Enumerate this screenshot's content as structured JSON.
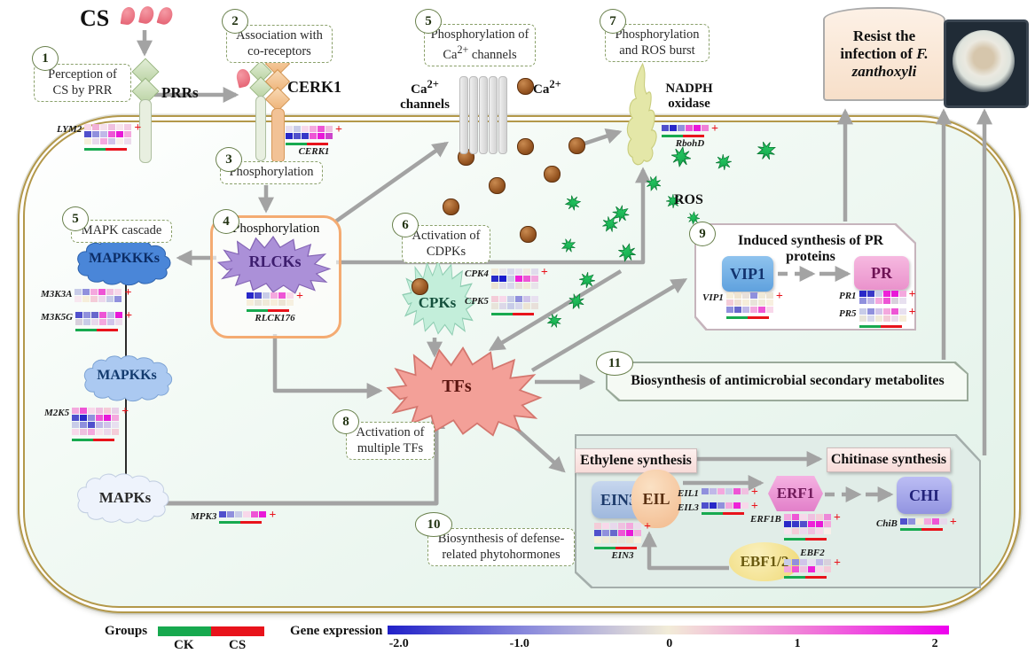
{
  "colors": {
    "arrow": "#a3a3a3",
    "membrane": "#b3984a",
    "ck": "#17a94f",
    "cs": "#e8131b",
    "plus": "#e8131b",
    "gradient": [
      "#2020c8",
      "#8a8adc",
      "#f2ecd8",
      "#f07ad8",
      "#ee00ee"
    ]
  },
  "banner": {
    "pre": "Resist the infection of ",
    "italic": "F. zanthoxyli"
  },
  "legend": {
    "groups_label": "Groups",
    "ck_label": "CK",
    "cs_label": "CS",
    "expression_label": "Gene expression",
    "ticks": [
      "-2.0",
      "-1.0",
      "0",
      "1",
      "2"
    ]
  },
  "steps": {
    "s1": {
      "num": "1",
      "label": "Perception of CS by PRR"
    },
    "s2": {
      "num": "2",
      "label": "Association with co-receptors"
    },
    "s3": {
      "num": "3",
      "label": "Phosphorylation"
    },
    "s4": {
      "num": "4",
      "label": "Phosphorylation"
    },
    "s5m": {
      "num": "5",
      "label": "MAPK cascade"
    },
    "s5c": {
      "num": "5",
      "pre": "Phosphorylation of Ca",
      "sup": "2+",
      "post": " channels"
    },
    "s6": {
      "num": "6",
      "label": "Activation of CDPKs"
    },
    "s7": {
      "num": "7",
      "label": "Phosphorylation and ROS burst"
    },
    "s8": {
      "num": "8",
      "label": "Activation of multiple TFs"
    },
    "s9": {
      "num": "9",
      "label": "Induced synthesis of PR proteins"
    },
    "s10": {
      "num": "10",
      "label": "Biosynthesis of defense-related phytohormones"
    },
    "s11": {
      "num": "11",
      "label": "Biosynthesis of antimicrobial secondary metabolites"
    }
  },
  "nodes": {
    "cs": "CS",
    "prrs": "PRRs",
    "cerk1": "CERK1",
    "ca_channels_pre": "Ca",
    "ca_sup": "2+",
    "ca_channels_post": "channels",
    "ca_ion": "Ca",
    "nadph_line1": "NADPH",
    "nadph_line2": "oxidase",
    "ros": "ROS",
    "mapkkks": "MAPKKKs",
    "mapkks": "MAPKKs",
    "mapks": "MAPKs",
    "rlcks": "RLCKs",
    "cpks": "CPKs",
    "tfs": "TFs",
    "vip1": "VIP1",
    "pr": "PR",
    "ethylene": "Ethylene synthesis",
    "chitinase": "Chitinase synthesis",
    "ein3": "EIN3",
    "eil": "EIL",
    "erf1": "ERF1",
    "ebf12": "EBF1/2",
    "chi": "CHI"
  },
  "genes": {
    "lym2": {
      "label": "LYM2",
      "plus": true,
      "bar": true,
      "rows": [
        [
          "#f8d8e8",
          "#f2b0d8",
          "#f6e0ec",
          "#f0c0e0",
          "#f8e4ee",
          "#f4cce4"
        ],
        [
          "#5050cc",
          "#9090dd",
          "#c0b8e8",
          "#ee55d5",
          "#e818d8",
          "#f4a8de"
        ],
        [
          "#f6eeda",
          "#e8d8ec",
          "#f4a8de",
          "#d0c4ea",
          "#f8f0ea",
          "#ecdcec"
        ]
      ]
    },
    "cerk1": {
      "label": "CERK1",
      "plus": true,
      "bar": true,
      "rows": [
        [
          "#e8e0f0",
          "#c8cce8",
          "#f8d8ea",
          "#f4a8de",
          "#ee55d5",
          "#f0c0e0"
        ],
        [
          "#2828c8",
          "#5050cc",
          "#3838c8",
          "#ee55d5",
          "#e818d8",
          "#cc44cc"
        ]
      ]
    },
    "rlck176": {
      "label": "RLCK176",
      "plus": true,
      "bar": true,
      "rows": [
        [
          "#2828c8",
          "#5050cc",
          "#c8cce8",
          "#f4a8de",
          "#ee55d5",
          "#f8d8ea"
        ],
        [
          "#f6eeda",
          "#e8e4da",
          "#f0ead8",
          "#f6eeda",
          "#ece4d4",
          "#f6f0e0"
        ]
      ]
    },
    "m3k3a": {
      "label": "M3K3A",
      "plus": true,
      "bar": false,
      "rows": [
        [
          "#c8cce8",
          "#9090dd",
          "#f4a8de",
          "#ee55d5",
          "#f0c0e0",
          "#f8d8ea"
        ],
        [
          "#f8e8f0",
          "#f6eeda",
          "#f4ccd8",
          "#ecd8ec",
          "#c8cce8",
          "#9090dd"
        ]
      ]
    },
    "m3k5g": {
      "label": "M3K5G",
      "plus": true,
      "bar": true,
      "rows": [
        [
          "#5050cc",
          "#9090dd",
          "#6868cc",
          "#ee55d5",
          "#c0b8e8",
          "#e818d8"
        ],
        [
          "#d8d0dc",
          "#c8cce8",
          "#e8d8ec",
          "#f4a8de",
          "#d0c4ea",
          "#ecdcec"
        ]
      ]
    },
    "m2k5": {
      "label": "M2K5",
      "plus": true,
      "bar": true,
      "rows": [
        [
          "#f4a8de",
          "#ee55d5",
          "#f8d8ea",
          "#f0c0e0",
          "#f4ccd8",
          "#e8d0e8"
        ],
        [
          "#5050cc",
          "#2828c8",
          "#9090dd",
          "#ee55d5",
          "#e818d8",
          "#f4a8de"
        ],
        [
          "#c8cce8",
          "#9090dd",
          "#5050cc",
          "#c0b8e8",
          "#d0c4ea",
          "#e8e0f0"
        ],
        [
          "#f8d8ea",
          "#f0c0e0",
          "#f4a8de",
          "#f8e4ee",
          "#ecd8ec",
          "#f4ccd8"
        ]
      ]
    },
    "mpk3": {
      "label": "MPK3",
      "plus": true,
      "bar": true,
      "rows": [
        [
          "#5050cc",
          "#9090dd",
          "#c8cce8",
          "#f8d8ea",
          "#ee55d5",
          "#e818d8"
        ]
      ]
    },
    "cpk4": {
      "label": "CPK4",
      "plus": true,
      "bar": false,
      "rows": [
        [
          "#f0ead8",
          "#e8e4ea",
          "#d8d8ec",
          "#e8e0f0",
          "#f0e8e0",
          "#e0dcec"
        ],
        [
          "#2828c8",
          "#1a1acd",
          "#c8cce8",
          "#ee22d8",
          "#ee55d5",
          "#f4a8de"
        ],
        [
          "#ece4d4",
          "#e0dcec",
          "#d8d8ec",
          "#e8e0da",
          "#f0ead8",
          "#e8e4ea"
        ]
      ]
    },
    "cpk5": {
      "label": "CPK5",
      "plus": false,
      "bar": true,
      "rows": [
        [
          "#f4ccd8",
          "#f8d8ea",
          "#c8cce8",
          "#9090dd",
          "#d0c4ea",
          "#e8e0f0"
        ],
        [
          "#e8e4da",
          "#dcd8e8",
          "#c8cce8",
          "#d8d8ec",
          "#ece4d4",
          "#e8e0da"
        ]
      ]
    },
    "rbohd": {
      "label": "RbohD",
      "plus": true,
      "bar": true,
      "rows": [
        [
          "#5050cc",
          "#2828c8",
          "#9090dd",
          "#ee55d5",
          "#e818d8",
          "#f080d8"
        ]
      ]
    },
    "vip1": {
      "label": "VIP1",
      "plus": true,
      "bar": true,
      "rows": [
        [
          "#f6eeda",
          "#f0e4d0",
          "#e8e0da",
          "#9090dd",
          "#f0ead8",
          "#ece4d4"
        ],
        [
          "#f4ccd8",
          "#f0e0d4",
          "#f6eeda",
          "#e8e4da",
          "#f0ead8",
          "#f8f0e0"
        ],
        [
          "#9090dd",
          "#6868cc",
          "#c0b8e8",
          "#f4a8de",
          "#ee55d5",
          "#f8d8ea"
        ]
      ]
    },
    "pr1": {
      "label": "PR1",
      "plus": true,
      "bar": false,
      "rows": [
        [
          "#2828c8",
          "#3838c8",
          "#c8cce8",
          "#ee22d8",
          "#e818d8",
          "#f4a8de"
        ],
        [
          "#9090dd",
          "#c0b8e8",
          "#f4a8de",
          "#ee55d5",
          "#d8d0dc",
          "#e8e0f0"
        ]
      ]
    },
    "pr5": {
      "label": "PR5",
      "plus": true,
      "bar": true,
      "rows": [
        [
          "#c8cce8",
          "#9090dd",
          "#d0c4ea",
          "#f4a8de",
          "#ee55d5",
          "#e8e0f0"
        ],
        [
          "#e8e4da",
          "#d8d8ec",
          "#f0ead8",
          "#f4ccd8",
          "#ecdcec",
          "#f6eeda"
        ]
      ]
    },
    "ein3": {
      "label": "EIN3",
      "plus": true,
      "bar": true,
      "rows": [
        [
          "#f4ccd8",
          "#f8d8ea",
          "#e8d8ec",
          "#f0c0e0",
          "#f4a8de",
          "#ecdcec"
        ],
        [
          "#5050cc",
          "#9090dd",
          "#6868cc",
          "#ee55d5",
          "#e818d8",
          "#f4a8de"
        ],
        [
          "#f6eeda",
          "#f0ead8",
          "#ece4d4",
          "#e8e4da",
          "#f0e4d0",
          "#f8f0e0"
        ]
      ]
    },
    "eil1": {
      "label": "EIL1",
      "plus": true,
      "bar": false,
      "rows": [
        [
          "#9090dd",
          "#c0b8e8",
          "#f4a8de",
          "#c8cce8",
          "#ee55d5",
          "#f0c0e0"
        ]
      ]
    },
    "eil3": {
      "label": "EIL3",
      "plus": true,
      "bar": true,
      "rows": [
        [
          "#5050cc",
          "#2828c8",
          "#9090dd",
          "#f4a8de",
          "#ee22d8",
          "#f8d8ea"
        ]
      ]
    },
    "erf1b": {
      "label": "ERF1B",
      "plus": true,
      "bar": true,
      "rows": [
        [
          "#f4a8de",
          "#ee55d5",
          "#f8d8ea",
          "#f0c0e0",
          "#f4ccd8",
          "#ee88d8"
        ],
        [
          "#2828c8",
          "#3838c8",
          "#5050cc",
          "#ee22d8",
          "#e818d8",
          "#f4a8de"
        ],
        [
          "#f8e4ee",
          "#f4ccd8",
          "#ecd8ec",
          "#f0c0e0",
          "#f8d8ea",
          "#f8f0ea"
        ]
      ]
    },
    "ebf2": {
      "label": "EBF2",
      "plus": true,
      "bar": true,
      "rows": [
        [
          "#c8cce8",
          "#9090dd",
          "#d0c4ea",
          "#e8e0f0",
          "#c0b8e8",
          "#d8d0dc"
        ],
        [
          "#f4a8de",
          "#ee55d5",
          "#f0c0e0",
          "#ee22d8",
          "#f8d8ea",
          "#f4ccd8"
        ]
      ]
    },
    "chib": {
      "label": "ChiB",
      "plus": true,
      "bar": true,
      "rows": [
        [
          "#5050cc",
          "#9090dd",
          "#f6eeda",
          "#f4a8de",
          "#ee55d5",
          "#e8d8ec"
        ]
      ]
    }
  }
}
